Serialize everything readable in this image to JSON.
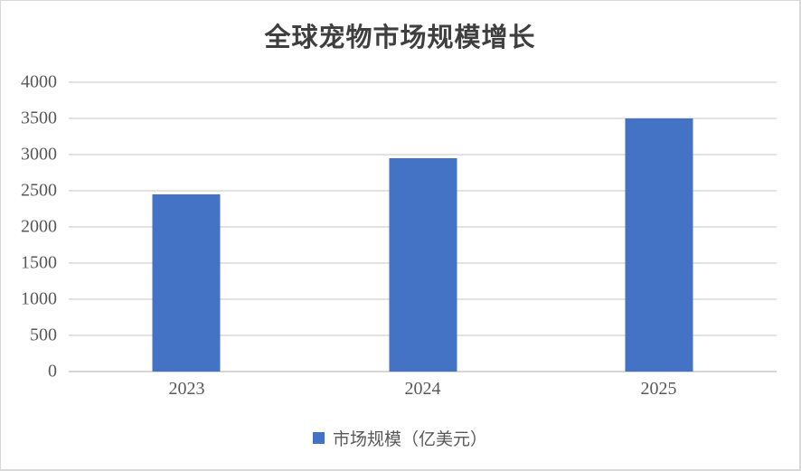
{
  "chart_data": {
    "type": "bar",
    "title": "全球宠物市场规模增长",
    "categories": [
      "2023",
      "2024",
      "2025"
    ],
    "series": [
      {
        "name": "市场规模（亿美元）",
        "values": [
          2450,
          2950,
          3500
        ]
      }
    ],
    "xlabel": "",
    "ylabel": "",
    "ylim": [
      0,
      4000
    ],
    "ytick_interval": 500,
    "ytick_labels": [
      "0",
      "500",
      "1000",
      "1500",
      "2000",
      "2500",
      "3000",
      "3500",
      "4000"
    ],
    "grid": true,
    "legend_position": "bottom",
    "colors": {
      "bar": "#4472C4",
      "gridline": "#E2E2E2",
      "axis_text": "#595959",
      "title_text": "#3F3F3F",
      "frame_border": "#D9D9D9",
      "background": "#FFFFFF"
    }
  },
  "legend": {
    "swatch_icon": "legend-swatch-square",
    "label": "市场规模（亿美元）"
  }
}
